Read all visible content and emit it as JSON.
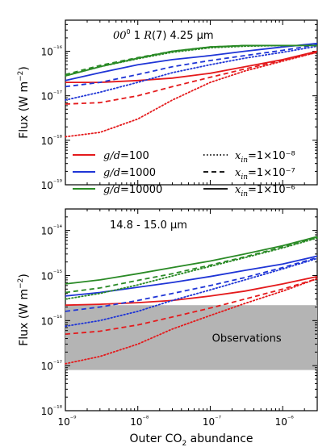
{
  "chart_data": [
    {
      "type": "line",
      "annotation": "00⁰ 1 R(7) 4.25 μm",
      "ylabel": "Flux (W m⁻²)",
      "xscale": "log",
      "yscale": "log",
      "xlim": [
        1e-09,
        3e-06
      ],
      "ylim": [
        1e-19,
        5e-16
      ],
      "yticks": [
        "10⁻¹⁹",
        "10⁻¹⁸",
        "10⁻¹⁷",
        "10⁻¹⁶"
      ],
      "x": [
        1e-09,
        3e-09,
        1e-08,
        3e-08,
        1e-07,
        3e-07,
        1e-06,
        3e-06
      ],
      "legend": {
        "placement": "lower-left",
        "ratios": [
          {
            "label": "g/d=100",
            "color": "#e41a1c"
          },
          {
            "label": "g/d=1000",
            "color": "#1f35d6"
          },
          {
            "label": "g/d=10000",
            "color": "#2a8a26"
          }
        ],
        "abundances": [
          {
            "label": "x_in=1×10⁻⁸",
            "style": "dotted"
          },
          {
            "label": "x_in=1×10⁻⁷",
            "style": "dashed"
          },
          {
            "label": "x_in=1×10⁻⁶",
            "style": "solid"
          }
        ]
      },
      "series": [
        {
          "name": "g/d=100, x_in=1×10⁻⁶",
          "color": "#e41a1c",
          "style": "solid",
          "values": [
            2e-17,
            2e-17,
            2.2e-17,
            2.5e-17,
            3.2e-17,
            4.5e-17,
            6.5e-17,
            1e-16
          ]
        },
        {
          "name": "g/d=100, x_in=1×10⁻⁷",
          "color": "#e41a1c",
          "style": "dashed",
          "values": [
            6.5e-18,
            7e-18,
            1e-17,
            1.6e-17,
            2.6e-17,
            4e-17,
            6.3e-17,
            9.5e-17
          ]
        },
        {
          "name": "g/d=100, x_in=1×10⁻⁸",
          "color": "#e41a1c",
          "style": "dotted",
          "values": [
            1.2e-18,
            1.5e-18,
            3e-18,
            8e-18,
            2e-17,
            3.6e-17,
            6e-17,
            9.5e-17
          ]
        },
        {
          "name": "g/d=1000, x_in=1×10⁻⁶",
          "color": "#1f35d6",
          "style": "solid",
          "values": [
            2.2e-17,
            3.3e-17,
            5e-17,
            6.5e-17,
            8e-17,
            1e-16,
            1.25e-16,
            1.5e-16
          ]
        },
        {
          "name": "g/d=1000, x_in=1×10⁻⁷",
          "color": "#1f35d6",
          "style": "dashed",
          "values": [
            1.6e-17,
            2e-17,
            3e-17,
            4.5e-17,
            6.2e-17,
            8e-17,
            1.05e-16,
            1.4e-16
          ]
        },
        {
          "name": "g/d=1000, x_in=1×10⁻⁸",
          "color": "#1f35d6",
          "style": "dotted",
          "values": [
            8e-18,
            1.2e-17,
            2e-17,
            3.3e-17,
            5e-17,
            7e-17,
            9.5e-17,
            1.3e-16
          ]
        },
        {
          "name": "g/d=10000, x_in=1×10⁻⁶",
          "color": "#2a8a26",
          "style": "solid",
          "values": [
            2.8e-17,
            4.5e-17,
            7e-17,
            1e-16,
            1.25e-16,
            1.35e-16,
            1.35e-16,
            1.35e-16
          ]
        },
        {
          "name": "g/d=10000, x_in=1×10⁻⁷",
          "color": "#2a8a26",
          "style": "dashed",
          "values": [
            3e-17,
            4.8e-17,
            7.2e-17,
            1e-16,
            1.25e-16,
            1.35e-16,
            1.35e-16,
            1.35e-16
          ]
        },
        {
          "name": "g/d=10000, x_in=1×10⁻⁸",
          "color": "#2a8a26",
          "style": "dotted",
          "values": [
            2.8e-17,
            4.5e-17,
            6.8e-17,
            9.5e-17,
            1.2e-16,
            1.3e-16,
            1.35e-16,
            1.35e-16
          ]
        }
      ]
    },
    {
      "type": "line",
      "annotation": "14.8 - 15.0 μm",
      "ylabel": "Flux (W m⁻²)",
      "xlabel": "Outer CO₂ abundance",
      "xscale": "log",
      "yscale": "log",
      "xlim": [
        1e-09,
        3e-06
      ],
      "ylim": [
        1e-18,
        3e-14
      ],
      "xticks": [
        "10⁻⁹",
        "10⁻⁸",
        "10⁻⁷",
        "10⁻⁶"
      ],
      "yticks": [
        "10⁻¹⁸",
        "10⁻¹⁷",
        "10⁻¹⁶",
        "10⁻¹⁵",
        "10⁻¹⁴"
      ],
      "x": [
        1e-09,
        3e-09,
        1e-08,
        3e-08,
        1e-07,
        3e-07,
        1e-06,
        3e-06
      ],
      "shaded_band": {
        "label": "Observations",
        "ymin": 8e-18,
        "ymax": 2.2e-16,
        "color": "#b4b4b4"
      },
      "series": [
        {
          "name": "g/d=100, x_in=1×10⁻⁶",
          "color": "#e41a1c",
          "style": "solid",
          "values": [
            2.2e-16,
            2.3e-16,
            2.5e-16,
            2.8e-16,
            3.5e-16,
            4.5e-16,
            6.5e-16,
            9.5e-16
          ]
        },
        {
          "name": "g/d=100, x_in=1×10⁻⁷",
          "color": "#e41a1c",
          "style": "dashed",
          "values": [
            5e-17,
            5.8e-17,
            8e-17,
            1.2e-16,
            1.9e-16,
            3e-16,
            5e-16,
            8.5e-16
          ]
        },
        {
          "name": "g/d=100, x_in=1×10⁻⁸",
          "color": "#e41a1c",
          "style": "dotted",
          "values": [
            1.1e-17,
            1.6e-17,
            3e-17,
            6.5e-17,
            1.3e-16,
            2.4e-16,
            4.5e-16,
            8.5e-16
          ]
        },
        {
          "name": "g/d=1000, x_in=1×10⁻⁶",
          "color": "#1f35d6",
          "style": "solid",
          "values": [
            3.5e-16,
            4.2e-16,
            5.5e-16,
            7e-16,
            9.5e-16,
            1.3e-15,
            1.8e-15,
            2.7e-15
          ]
        },
        {
          "name": "g/d=1000, x_in=1×10⁻⁷",
          "color": "#1f35d6",
          "style": "dashed",
          "values": [
            1.6e-16,
            2e-16,
            2.8e-16,
            4e-16,
            6e-16,
            9e-16,
            1.5e-15,
            2.5e-15
          ]
        },
        {
          "name": "g/d=1000, x_in=1×10⁻⁸",
          "color": "#1f35d6",
          "style": "dotted",
          "values": [
            7.5e-17,
            1e-16,
            1.6e-16,
            2.8e-16,
            4.8e-16,
            8e-16,
            1.4e-15,
            2.4e-15
          ]
        },
        {
          "name": "g/d=10000, x_in=1×10⁻⁶",
          "color": "#2a8a26",
          "style": "solid",
          "values": [
            6.5e-16,
            8e-16,
            1.1e-15,
            1.5e-15,
            2.1e-15,
            3e-15,
            4.6e-15,
            7.3e-15
          ]
        },
        {
          "name": "g/d=10000, x_in=1×10⁻⁷",
          "color": "#2a8a26",
          "style": "dashed",
          "values": [
            4.2e-16,
            5.3e-16,
            7.8e-16,
            1.1e-15,
            1.7e-15,
            2.6e-15,
            4.3e-15,
            7e-15
          ]
        },
        {
          "name": "g/d=10000, x_in=1×10⁻⁸",
          "color": "#2a8a26",
          "style": "dotted",
          "values": [
            3e-16,
            4e-16,
            6.2e-16,
            9.8e-16,
            1.6e-15,
            2.5e-15,
            4.1e-15,
            6.8e-15
          ]
        }
      ]
    }
  ]
}
